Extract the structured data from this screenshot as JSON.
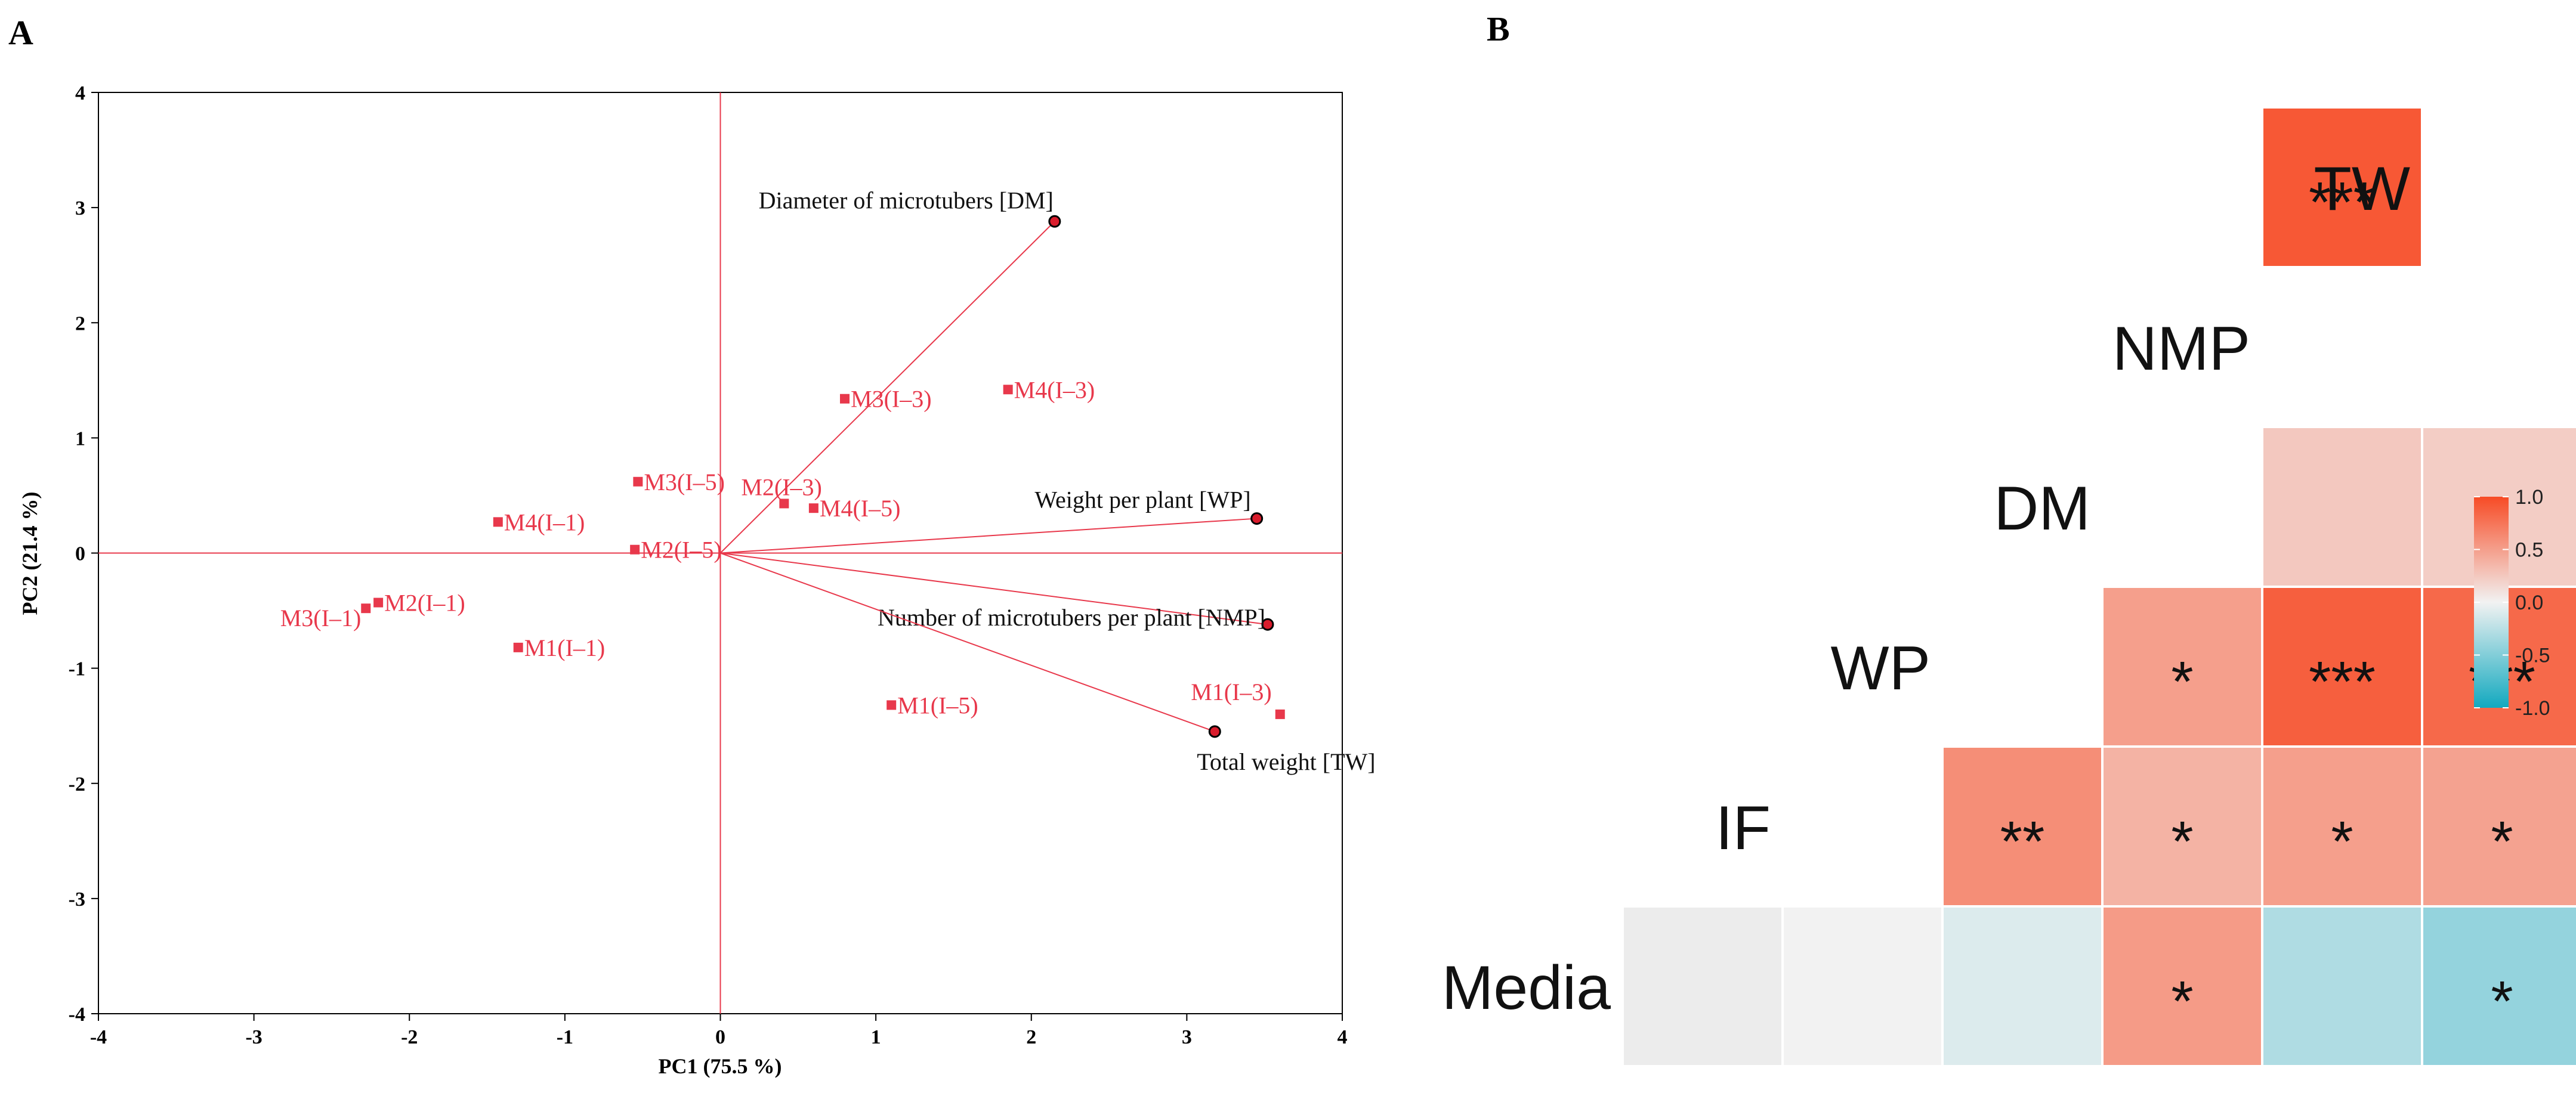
{
  "panels": {
    "a": "A",
    "b": "B"
  },
  "chart_data": [
    {
      "type": "scatter",
      "title": "",
      "xlabel": "PC1  (75.5 %)",
      "ylabel": "PC2  (21.4 %)",
      "xlim": [
        -4,
        4
      ],
      "ylim": [
        -4,
        4
      ],
      "xticks": [
        "-4",
        "-3",
        "-2",
        "-1",
        "0",
        "1",
        "2",
        "3",
        "4"
      ],
      "yticks": [
        "4",
        "3",
        "2",
        "1",
        "0",
        "-1",
        "-2",
        "-3",
        "-4"
      ],
      "colors": {
        "points": "#e8384b",
        "axes": "#e8384b",
        "frame": "#000000"
      },
      "points": [
        {
          "label": "M1(I–1)",
          "x": -1.3,
          "y": -0.82
        },
        {
          "label": "M2(I–1)",
          "x": -2.2,
          "y": -0.43
        },
        {
          "label": "M3(I–1)",
          "x": -2.28,
          "y": -0.48
        },
        {
          "label": "M4(I–1)",
          "x": -1.43,
          "y": 0.27
        },
        {
          "label": "M1(I–3)",
          "x": 3.6,
          "y": -1.4
        },
        {
          "label": "M2(I–3)",
          "x": 0.41,
          "y": 0.43
        },
        {
          "label": "M3(I–3)",
          "x": 0.8,
          "y": 1.34
        },
        {
          "label": "M4(I–3)",
          "x": 1.85,
          "y": 1.42
        },
        {
          "label": "M1(I–5)",
          "x": 1.1,
          "y": -1.32
        },
        {
          "label": "M2(I–5)",
          "x": -0.55,
          "y": 0.03
        },
        {
          "label": "M3(I–5)",
          "x": -0.53,
          "y": 0.62
        },
        {
          "label": "M4(I–5)",
          "x": 0.6,
          "y": 0.39
        }
      ],
      "loadings": [
        {
          "label": "Diameter of microtubers [DM]",
          "x": 2.15,
          "y": 2.88
        },
        {
          "label": "Weight per plant [WP]",
          "x": 3.45,
          "y": 0.3
        },
        {
          "label": "Number of microtubers per plant [NMP]",
          "x": 3.52,
          "y": -0.62
        },
        {
          "label": "Total weight [TW]",
          "x": 3.18,
          "y": -1.55
        }
      ]
    },
    {
      "type": "heatmap",
      "title": "",
      "variables": [
        "Media",
        "IF",
        "WP",
        "DM",
        "NMP",
        "TW"
      ],
      "cells": [
        {
          "row": "TW",
          "col": "NMP",
          "r": 0.92,
          "sig": "***"
        },
        {
          "row": "DM",
          "col": "NMP",
          "r": 0.25,
          "sig": ""
        },
        {
          "row": "DM",
          "col": "TW",
          "r": 0.22,
          "sig": ""
        },
        {
          "row": "WP",
          "col": "DM",
          "r": 0.5,
          "sig": "*"
        },
        {
          "row": "WP",
          "col": "NMP",
          "r": 0.88,
          "sig": "***"
        },
        {
          "row": "WP",
          "col": "TW",
          "r": 0.82,
          "sig": "***"
        },
        {
          "row": "IF",
          "col": "WP",
          "r": 0.6,
          "sig": "**"
        },
        {
          "row": "IF",
          "col": "DM",
          "r": 0.38,
          "sig": "*"
        },
        {
          "row": "IF",
          "col": "NMP",
          "r": 0.5,
          "sig": "*"
        },
        {
          "row": "IF",
          "col": "TW",
          "r": 0.48,
          "sig": "*"
        },
        {
          "row": "Media",
          "col": "IF",
          "r": 0.0,
          "sig": ""
        },
        {
          "row": "Media",
          "col": "WP",
          "r": -0.1,
          "sig": ""
        },
        {
          "row": "Media",
          "col": "DM",
          "r": 0.52,
          "sig": "*"
        },
        {
          "row": "Media",
          "col": "NMP",
          "r": -0.3,
          "sig": ""
        },
        {
          "row": "Media",
          "col": "TW",
          "r": -0.42,
          "sig": "*"
        }
      ],
      "colorbar": {
        "ticks": [
          "1.0",
          "0.5",
          "0.0",
          "-0.5",
          "-1.0"
        ],
        "range": [
          -1,
          1
        ],
        "high": "#f74b25",
        "mid": "#f2f2f2",
        "low": "#12a9bf"
      }
    }
  ]
}
